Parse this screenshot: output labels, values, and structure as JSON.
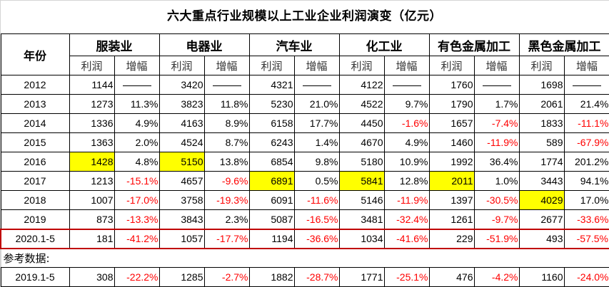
{
  "title": "六大重点行业规模以上工业企业利润演变（亿元）",
  "header": {
    "year_label": "年份",
    "groups": [
      "服装业",
      "电器业",
      "汽车业",
      "化工业",
      "有色金属加工",
      "黑色金属加工"
    ],
    "sub": [
      "利润",
      "增幅"
    ]
  },
  "colors": {
    "negative": "#ff0000",
    "highlight": "#ffff00",
    "covid_border": "#c00000"
  },
  "rows": [
    {
      "year": "2012",
      "cells": [
        [
          "1144",
          "——"
        ],
        [
          "3420",
          "——"
        ],
        [
          "4321",
          "——"
        ],
        [
          "4122",
          "——"
        ],
        [
          "1760",
          "——"
        ],
        [
          "1698",
          "——"
        ]
      ]
    },
    {
      "year": "2013",
      "cells": [
        [
          "1273",
          "11.3%"
        ],
        [
          "3823",
          "11.8%"
        ],
        [
          "5230",
          "21.0%"
        ],
        [
          "4522",
          "9.7%"
        ],
        [
          "1790",
          "1.7%"
        ],
        [
          "2061",
          "21.4%"
        ]
      ]
    },
    {
      "year": "2014",
      "cells": [
        [
          "1336",
          "4.9%"
        ],
        [
          "4163",
          "8.9%"
        ],
        [
          "6158",
          "17.7%"
        ],
        [
          "4450",
          "-1.6%"
        ],
        [
          "1657",
          "-7.4%"
        ],
        [
          "1833",
          "-11.1%"
        ]
      ]
    },
    {
      "year": "2015",
      "cells": [
        [
          "1363",
          "2.0%"
        ],
        [
          "4524",
          "8.7%"
        ],
        [
          "6243",
          "1.4%"
        ],
        [
          "4670",
          "4.9%"
        ],
        [
          "1460",
          "-11.9%"
        ],
        [
          "589",
          "-67.9%"
        ]
      ]
    },
    {
      "year": "2016",
      "cells": [
        [
          "1428",
          "4.8%"
        ],
        [
          "5150",
          "13.8%"
        ],
        [
          "6854",
          "9.8%"
        ],
        [
          "5180",
          "10.9%"
        ],
        [
          "1992",
          "36.4%"
        ],
        [
          "1774",
          "201.2%"
        ]
      ]
    },
    {
      "year": "2017",
      "cells": [
        [
          "1213",
          "-15.1%"
        ],
        [
          "4657",
          "-9.6%"
        ],
        [
          "6891",
          "0.5%"
        ],
        [
          "5841",
          "12.8%"
        ],
        [
          "2011",
          "1.0%"
        ],
        [
          "3443",
          "94.1%"
        ]
      ]
    },
    {
      "year": "2018",
      "cells": [
        [
          "1007",
          "-17.0%"
        ],
        [
          "3758",
          "-19.3%"
        ],
        [
          "6091",
          "-11.6%"
        ],
        [
          "5146",
          "-11.9%"
        ],
        [
          "1397",
          "-30.5%"
        ],
        [
          "4029",
          "17.0%"
        ]
      ]
    },
    {
      "year": "2019",
      "cells": [
        [
          "873",
          "-13.3%"
        ],
        [
          "3843",
          "2.3%"
        ],
        [
          "5087",
          "-16.5%"
        ],
        [
          "3481",
          "-32.4%"
        ],
        [
          "1261",
          "-9.7%"
        ],
        [
          "2677",
          "-33.6%"
        ]
      ]
    },
    {
      "year": "2020.1-5",
      "cells": [
        [
          "181",
          "-41.2%"
        ],
        [
          "1057",
          "-17.7%"
        ],
        [
          "1194",
          "-36.6%"
        ],
        [
          "1034",
          "-41.6%"
        ],
        [
          "229",
          "-51.9%"
        ],
        [
          "493",
          "-57.5%"
        ]
      ]
    }
  ],
  "highlights": [
    {
      "row": "2016",
      "industry": "服装业"
    },
    {
      "row": "2016",
      "industry": "电器业"
    },
    {
      "row": "2017",
      "industry": "汽车业"
    },
    {
      "row": "2017",
      "industry": "化工业"
    },
    {
      "row": "2017",
      "industry": "有色金属加工"
    },
    {
      "row": "2018",
      "industry": "黑色金属加工"
    }
  ],
  "reference": {
    "label": "参考数据:",
    "row": {
      "year": "2019.1-5",
      "cells": [
        [
          "308",
          "-22.2%"
        ],
        [
          "1285",
          "-2.7%"
        ],
        [
          "1882",
          "-28.7%"
        ],
        [
          "1771",
          "-25.1%"
        ],
        [
          "476",
          "-4.2%"
        ],
        [
          "1160",
          "-24.0%"
        ]
      ]
    }
  }
}
